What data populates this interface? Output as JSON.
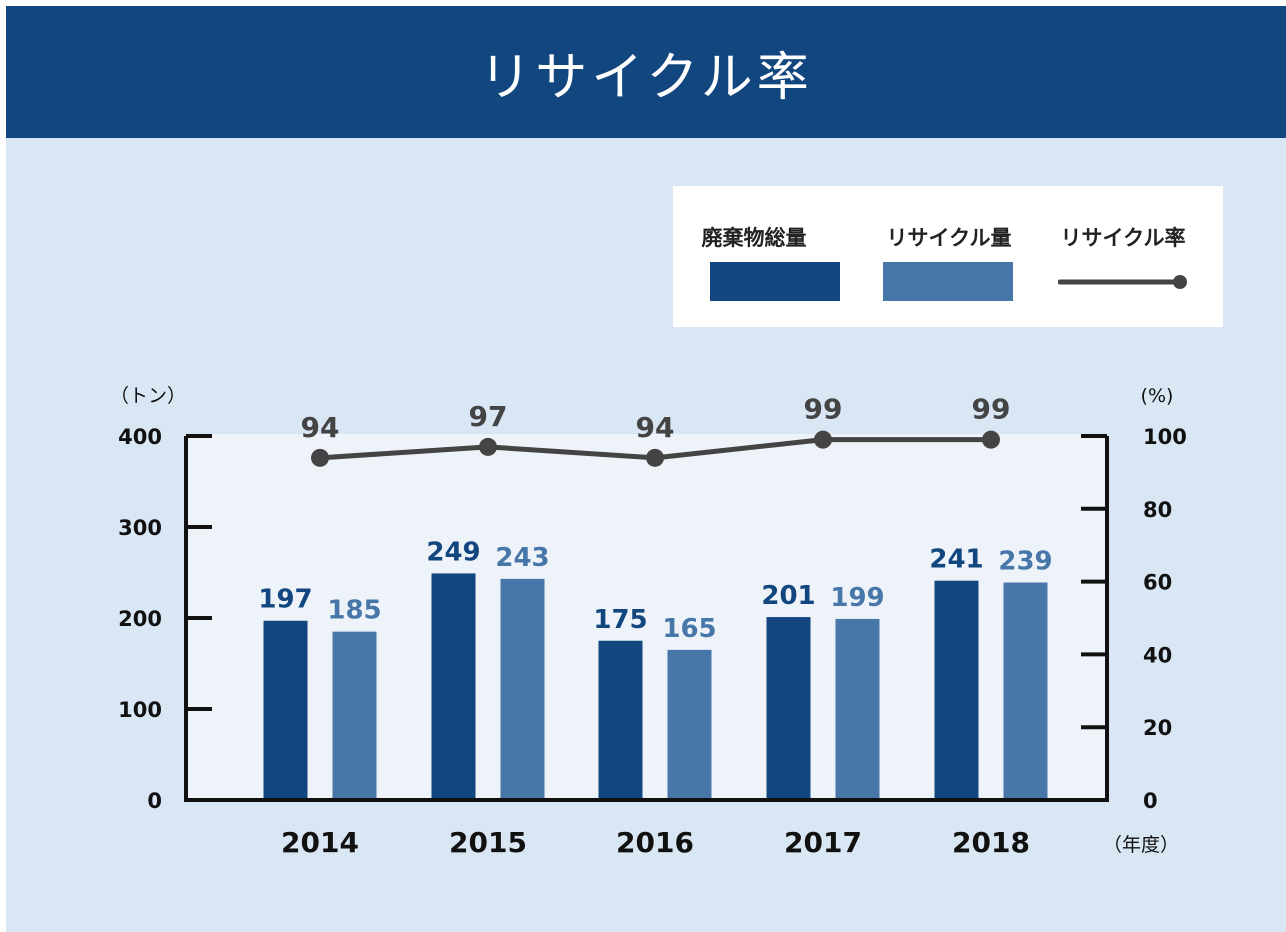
{
  "header": {
    "title": "リサイクル率"
  },
  "legend": {
    "items": [
      {
        "label": "廃棄物総量",
        "kind": "bar",
        "color": "#11467f"
      },
      {
        "label": "リサイクル量",
        "kind": "bar",
        "color": "#4777a8"
      },
      {
        "label": "リサイクル率",
        "kind": "line",
        "color": "#444444"
      }
    ]
  },
  "chart_data": {
    "type": "bar",
    "categories": [
      "2014",
      "2015",
      "2016",
      "2017",
      "2018"
    ],
    "highlight_category": "2018",
    "series": [
      {
        "name": "廃棄物総量",
        "axis": "left",
        "color": "#11467f",
        "values": [
          197,
          249,
          175,
          201,
          241
        ]
      },
      {
        "name": "リサイクル量",
        "axis": "left",
        "color": "#4777a8",
        "values": [
          185,
          243,
          165,
          199,
          239
        ]
      },
      {
        "name": "リサイクル率",
        "axis": "right",
        "type": "line",
        "color": "#444444",
        "values": [
          94,
          97,
          94,
          99,
          99
        ]
      }
    ],
    "left_axis": {
      "unit": "（トン）",
      "ticks": [
        "400",
        "300",
        "200",
        "100",
        "0"
      ],
      "ylim": [
        0,
        400
      ]
    },
    "right_axis": {
      "unit": "(%)",
      "ticks": [
        "100",
        "80",
        "60",
        "40",
        "20",
        "0"
      ],
      "ylim": [
        0,
        100
      ]
    },
    "x_unit": "（年度）",
    "grid": false,
    "legend_position": "top-right"
  }
}
